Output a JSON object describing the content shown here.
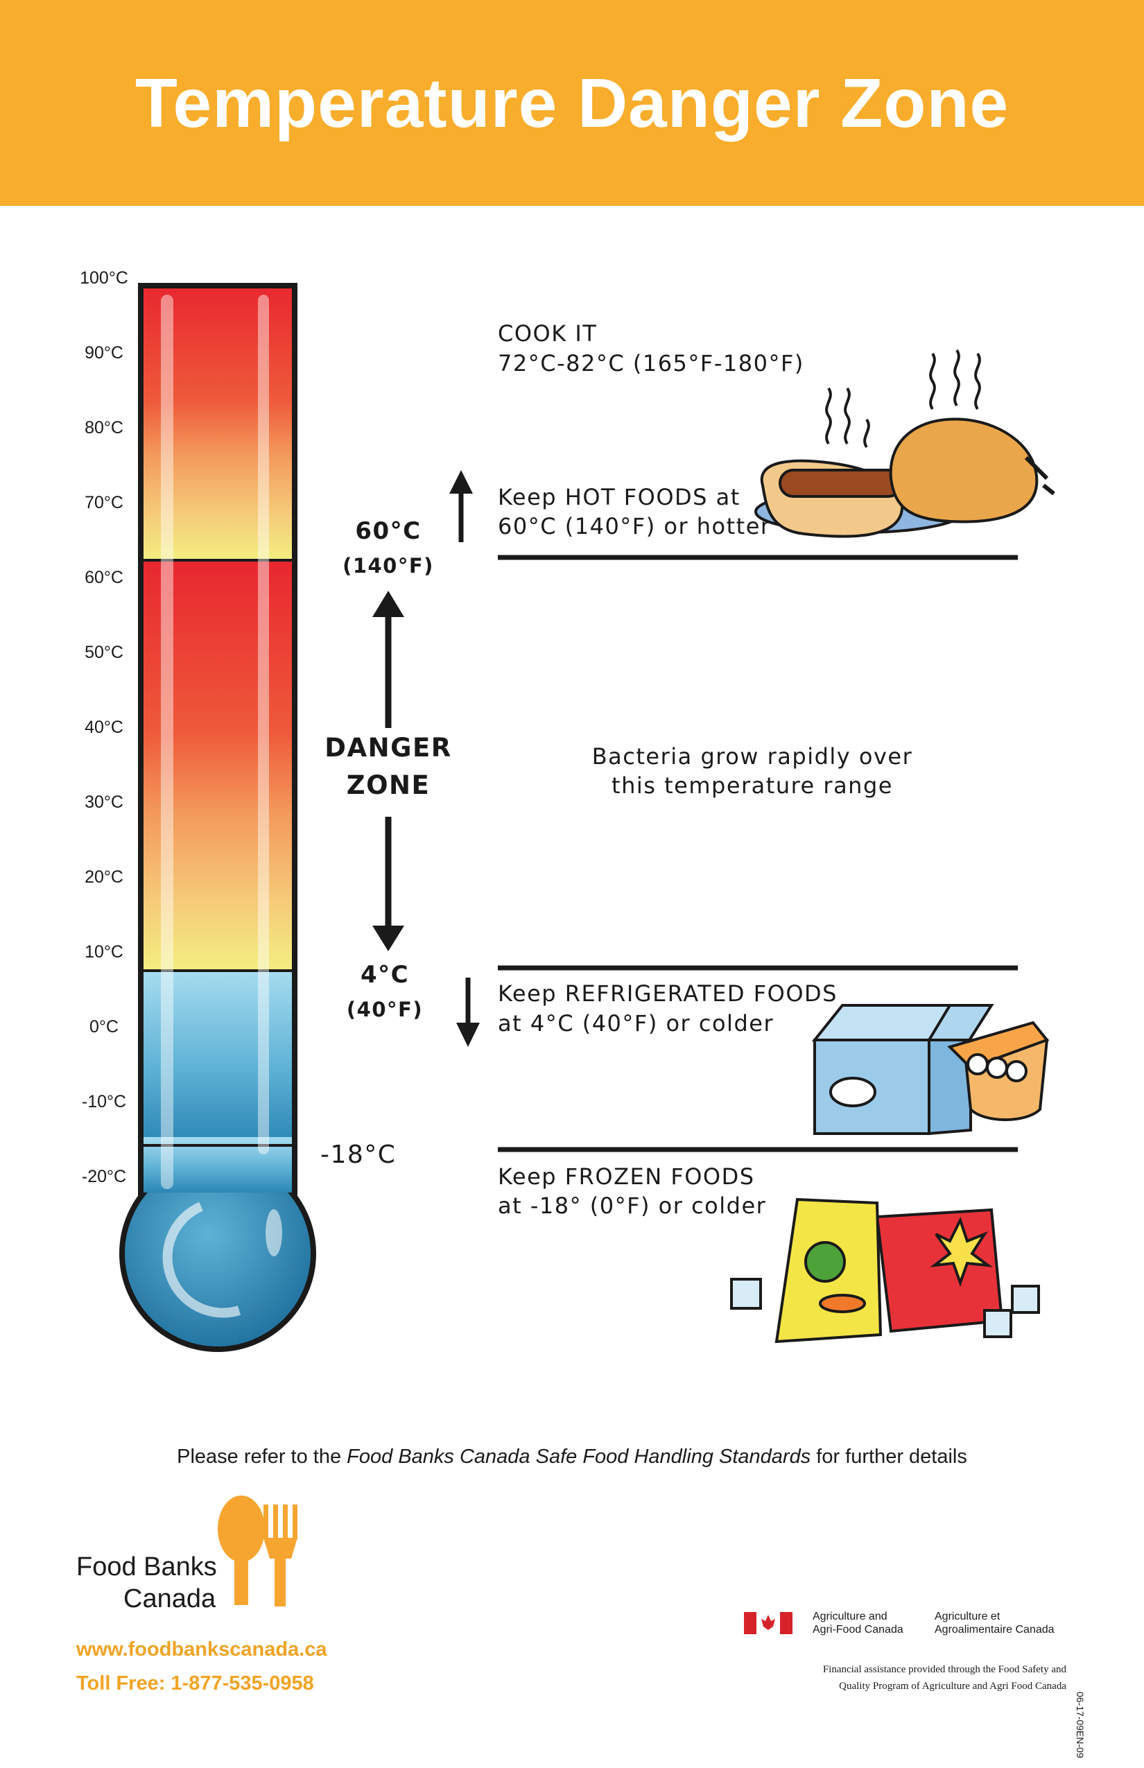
{
  "header": {
    "title": "Temperature Danger Zone"
  },
  "colors": {
    "banner": "#f9ad2c",
    "accent_text": "#f0a324"
  },
  "scale": {
    "ticks": [
      "100°C",
      "90°C",
      "80°C",
      "70°C",
      "60°C",
      "50°C",
      "40°C",
      "30°C",
      "20°C",
      "10°C",
      "0°C",
      "-10°C",
      "-20°C"
    ]
  },
  "markers": {
    "hot_c": "60°C",
    "hot_f": "(140°F)",
    "cold_c": "4°C",
    "cold_f": "(40°F)",
    "frozen_c": "-18°C",
    "danger_line1": "DANGER",
    "danger_line2": "ZONE"
  },
  "sections": {
    "cook": {
      "title": "COOK IT",
      "range": "72°C-82°C (165°F-180°F)"
    },
    "hot": {
      "line1": "Keep HOT FOODS at",
      "line2": "60°C (140°F) or hotter"
    },
    "bacteria": {
      "line1": "Bacteria grow rapidly over",
      "line2": "this temperature range"
    },
    "refrigerated": {
      "line1": "Keep REFRIGERATED FOODS",
      "line2": "at 4°C (40°F) or colder"
    },
    "frozen": {
      "line1": "Keep FROZEN FOODS",
      "line2": "at -18° (0°F) or colder"
    }
  },
  "footer": {
    "note_pre": "Please refer to the ",
    "note_italic": "Food Banks Canada Safe Food Handling Standards",
    "note_post": " for further details",
    "org_line1": "Food Banks",
    "org_line2": "Canada",
    "website": "www.foodbankscanada.ca",
    "tollfree": "Toll Free: 1-877-535-0958",
    "agr_en_1": "Agriculture and",
    "agr_en_2": "Agri-Food Canada",
    "agr_fr_1": "Agriculture et",
    "agr_fr_2": "Agroalimentaire Canada",
    "financial_1": "Financial assistance provided through the Food Safety and",
    "financial_2": "Quality Program of Agriculture and Agri Food Canada",
    "code": "06-17-09EN-09"
  }
}
